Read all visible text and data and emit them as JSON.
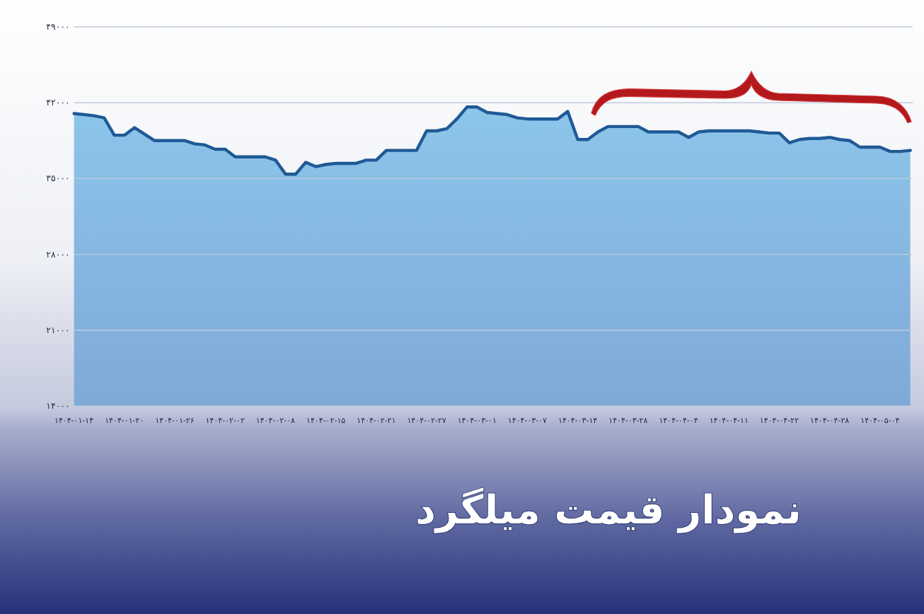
{
  "chart_data": {
    "type": "area",
    "title": "نمودار قیمت میلگرد",
    "categories": [
      "۱۴۰۴-۰۱-۱۴",
      null,
      null,
      null,
      null,
      "۱۴۰۴-۰۱-۲۰",
      null,
      null,
      null,
      null,
      "۱۴۰۴-۰۱-۲۶",
      null,
      null,
      null,
      null,
      "۱۴۰۴-۰۲-۰۲",
      null,
      null,
      null,
      null,
      "۱۴۰۴-۰۲-۰۸",
      null,
      null,
      null,
      null,
      "۱۴۰۴-۰۲-۱۵",
      null,
      null,
      null,
      null,
      "۱۴۰۴-۰۲-۲۱",
      null,
      null,
      null,
      null,
      "۱۴۰۴-۰۲-۲۷",
      null,
      null,
      null,
      null,
      "۱۴۰۴-۰۳-۰۱",
      null,
      null,
      null,
      null,
      "۱۴۰۴-۰۳-۰۷",
      null,
      null,
      null,
      null,
      "۱۴۰۴-۰۳-۱۴",
      null,
      null,
      null,
      null,
      "۱۴۰۴-۰۳-۲۸",
      null,
      null,
      null,
      null,
      "۱۴۰۴-۰۴-۰۴",
      null,
      null,
      null,
      null,
      "۱۴۰۴-۰۴-۱۱",
      null,
      null,
      null,
      null,
      "۱۴۰۴-۰۴-۲۲",
      null,
      null,
      null,
      null,
      "۱۴۰۴-۰۴-۲۸",
      null,
      null,
      null,
      null,
      "۱۴۰۴-۰۵-۰۴",
      null,
      null,
      null
    ],
    "series": [
      {
        "color": "#1f5a96",
        "values": [
          41000,
          40900,
          40800,
          40600,
          39000,
          39000,
          39700,
          39100,
          38500,
          38500,
          38500,
          38500,
          38200,
          38100,
          37700,
          37700,
          37000,
          37000,
          37000,
          37000,
          36700,
          35400,
          35400,
          36500,
          36100,
          36300,
          36400,
          36400,
          36400,
          36700,
          36700,
          37600,
          37600,
          37600,
          37600,
          39400,
          39400,
          39600,
          40500,
          41600,
          41600,
          41100,
          41000,
          40900,
          40600,
          40500,
          40500,
          40500,
          40500,
          41200,
          38600,
          38600,
          39300,
          39800,
          39800,
          39800,
          39800,
          39300,
          39300,
          39300,
          39300,
          38800,
          39300,
          39400,
          39400,
          39400,
          39400,
          39400,
          39300,
          39200,
          39200,
          38300,
          38600,
          38700,
          38700,
          38800,
          38600,
          38500,
          37900,
          37900,
          37900,
          37500,
          37500,
          37600
        ]
      }
    ],
    "ylim": [
      14000,
      49000
    ],
    "yticks": [
      {
        "value": 14000,
        "label": "۱۴۰۰۰"
      },
      {
        "value": 21000,
        "label": "۲۱۰۰۰"
      },
      {
        "value": 28000,
        "label": "۲۸۰۰۰"
      },
      {
        "value": 35000,
        "label": "۳۵۰۰۰"
      },
      {
        "value": 42000,
        "label": "۴۲۰۰۰"
      },
      {
        "value": 49000,
        "label": "۴۹۰۰۰"
      }
    ],
    "grid": "y"
  }
}
